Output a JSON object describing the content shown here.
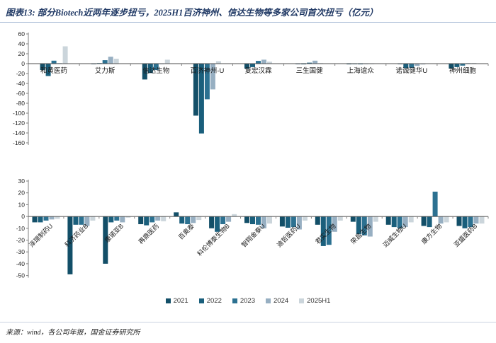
{
  "header": {
    "title": "图表13: 部分Biotech近两年逐步扭亏，2025H1百济神州、信达生物等多家公司首次扭亏（亿元）"
  },
  "footer": {
    "source": "来源：wind，各公司年报，国金证券研究所"
  },
  "legend": {
    "items": [
      {
        "label": "2021",
        "color": "#134F68"
      },
      {
        "label": "2022",
        "color": "#1A5F7C"
      },
      {
        "label": "2023",
        "color": "#2C7191"
      },
      {
        "label": "2024",
        "color": "#97AFC2"
      },
      {
        "label": "2025H1",
        "color": "#CBD5DB"
      }
    ]
  },
  "chart_data": [
    {
      "name": "top-chart",
      "type": "bar",
      "title": "",
      "unit": "亿元",
      "grid": false,
      "legend_position": "shared-bottom",
      "ylim": [
        -160,
        60
      ],
      "ytick_step": 20,
      "categories": [
        "和黄医药",
        "艾力斯",
        "信达生物",
        "百济神州-U",
        "复宏汉霖",
        "三生国健",
        "上海谊众",
        "诺诚健华U",
        "神州细胞"
      ],
      "series": [
        {
          "name": "2021",
          "color": "#134F68",
          "values": [
            -13,
            -0.5,
            -32,
            -105,
            -10,
            -1,
            -1.5,
            -0.5,
            -10
          ]
        },
        {
          "name": "2022",
          "color": "#1A5F7C",
          "values": [
            -25,
            1,
            -19,
            -141,
            -7,
            -1.5,
            -1,
            -9,
            -7
          ]
        },
        {
          "name": "2023",
          "color": "#2C7191",
          "values": [
            6,
            7,
            -13,
            -72,
            5.5,
            2,
            -1.5,
            -8.5,
            -4
          ]
        },
        {
          "name": "2024",
          "color": "#97AFC2",
          "values": [
            1,
            14,
            -1,
            -52,
            8,
            6,
            -1,
            -4.5,
            1
          ]
        },
        {
          "name": "2025H1",
          "color": "#CBD5DB",
          "values": [
            35,
            10,
            8,
            5,
            4,
            1,
            -0.5,
            -2,
            1.5
          ]
        }
      ]
    },
    {
      "name": "bottom-chart",
      "type": "bar",
      "title": "",
      "unit": "亿元",
      "grid": false,
      "legend_position": "bottom",
      "ylim": [
        -50,
        30
      ],
      "ytick_step": 10,
      "categories": [
        "泽璟制药U",
        "科济药业B",
        "康诺亚B",
        "再鼎医药",
        "百奥泰",
        "科伦博泰生物B",
        "智翔金泰U",
        "迪哲医药U",
        "君实生物",
        "荣昌生物",
        "迈威生物U",
        "康方生物",
        "亚盛医药B"
      ],
      "series": [
        {
          "name": "2021",
          "color": "#134F68",
          "values": [
            -5,
            -49,
            -40,
            -6.5,
            3.5,
            -10,
            -5.5,
            -8.5,
            -7,
            -4.5,
            -7,
            -8,
            -8
          ]
        },
        {
          "name": "2022",
          "color": "#1A5F7C",
          "values": [
            -5,
            -7,
            -5,
            -7.5,
            -6,
            -13,
            -6.5,
            -9.5,
            -25,
            -15,
            -9,
            -9,
            -10
          ]
        },
        {
          "name": "2023",
          "color": "#2C7191",
          "values": [
            -3.5,
            -7,
            -3.5,
            -5,
            -6.5,
            -6.5,
            -7,
            -9,
            -24,
            -16,
            -10,
            21,
            -9
          ]
        },
        {
          "name": "2024",
          "color": "#97AFC2",
          "values": [
            -2.5,
            -8,
            -5,
            -3.5,
            -5.5,
            -4.5,
            -10,
            -11,
            -13,
            -17,
            -9,
            -6,
            -6
          ]
        },
        {
          "name": "2025H1",
          "color": "#CBD5DB",
          "values": [
            -2,
            -3.5,
            -1,
            -4,
            -3,
            2,
            -6,
            -3.5,
            -3.5,
            -4.5,
            -5,
            -5,
            -6
          ]
        }
      ]
    }
  ]
}
